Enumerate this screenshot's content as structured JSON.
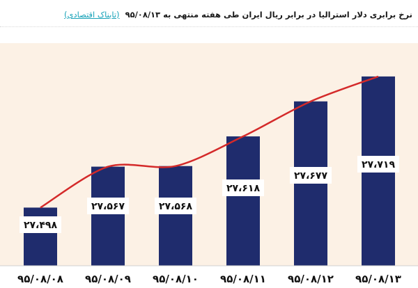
{
  "header": {
    "title": "نرخ برابری دلار استرالیا در برابر ریال ایران طی هفته منتهی به ۹۵/۰۸/۱۳",
    "source": "(تابناک اقتصادی)"
  },
  "chart_data": {
    "type": "bar",
    "title": "نرخ برابری دلار استرالیا در برابر ریال ایران طی هفته منتهی به ۹۵/۰۸/۱۳",
    "categories": [
      "۹۵/۰۸/۰۸",
      "۹۵/۰۸/۰۹",
      "۹۵/۰۸/۱۰",
      "۹۵/۰۸/۱۱",
      "۹۵/۰۸/۱۲",
      "۹۵/۰۸/۱۳"
    ],
    "values": [
      27498,
      27567,
      27568,
      27618,
      27677,
      27719
    ],
    "value_labels": [
      "۲۷،۴۹۸",
      "۲۷،۵۶۷",
      "۲۷،۵۶۸",
      "۲۷،۶۱۸",
      "۲۷،۶۷۷",
      "۲۷،۷۱۹"
    ],
    "overlay": "smoothed-trend-line",
    "grid": false,
    "legend": "none",
    "colors": {
      "bar": "#1f2c6d",
      "trend_line": "#d42a2a",
      "plot_background": "#fcf1e5",
      "label_box": "#ffffff"
    }
  }
}
